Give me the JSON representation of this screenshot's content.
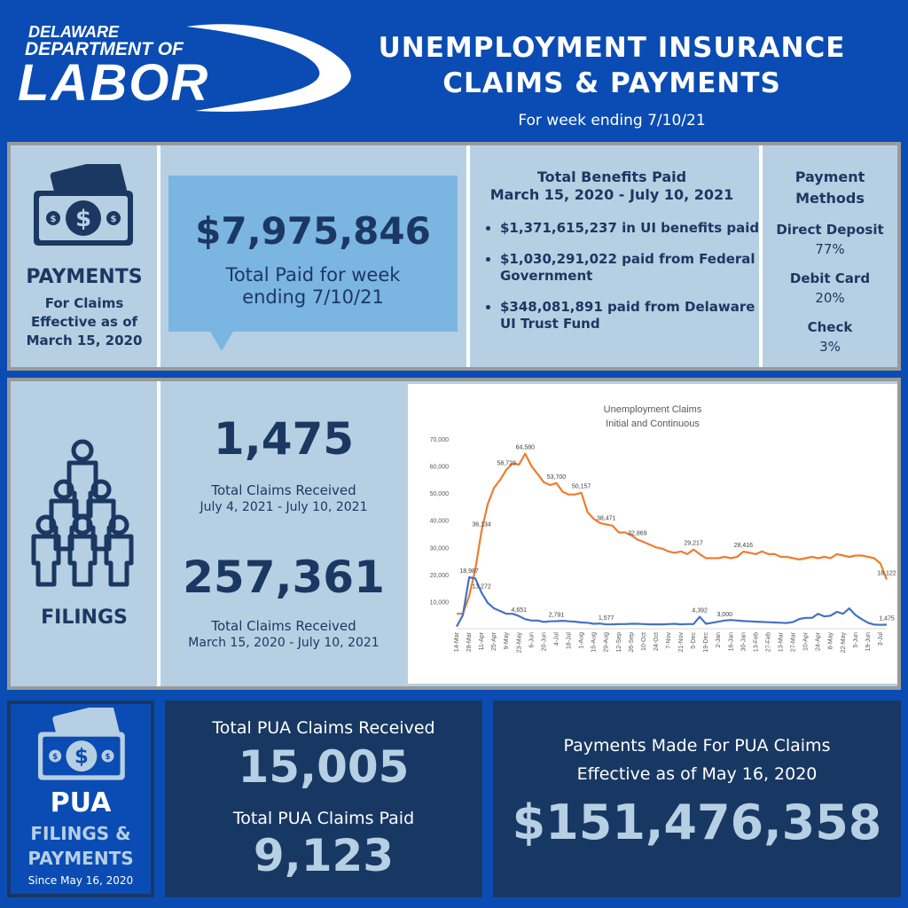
{
  "header": {
    "logo_line1": "DELAWARE",
    "logo_line2": "DEPARTMENT OF",
    "logo_line3": "LABOR",
    "title_line1": "UNEMPLOYMENT INSURANCE",
    "title_line2": "CLAIMS & PAYMENTS",
    "subtitle": "For week ending 7/10/21"
  },
  "payments": {
    "label": "PAYMENTS",
    "note": "For Claims Effective as of March 15, 2020",
    "icon": "money-icon",
    "total_week_value": "$7,975,846",
    "total_week_label": "Total Paid for week ending 7/10/21",
    "benefits_title_line1": "Total Benefits Paid",
    "benefits_title_line2": "March 15, 2020 - July 10, 2021",
    "benefits": [
      "$1,371,615,237 in UI benefits paid",
      "$1,030,291,022 paid from Federal Government",
      "$348,081,891 paid from Delaware UI Trust Fund"
    ],
    "methods_title": "Payment Methods",
    "methods": [
      {
        "name": "Direct Deposit",
        "pct": "77%"
      },
      {
        "name": "Debit Card",
        "pct": "20%"
      },
      {
        "name": "Check",
        "pct": "3%"
      }
    ]
  },
  "filings": {
    "label": "FILINGS",
    "icon": "people-pyramid-icon",
    "week_value": "1,475",
    "week_label_line1": "Total Claims Received",
    "week_label_line2": "July 4, 2021 - July 10, 2021",
    "total_value": "257,361",
    "total_label_line1": "Total Claims Received",
    "total_label_line2": "March 15, 2020 - July 10, 2021"
  },
  "chart_data": {
    "type": "line",
    "title": "Unemployment Claims",
    "subtitle": "Initial and Continuous",
    "ylim": [
      0,
      70000
    ],
    "yticks": [
      "",
      "10,000",
      "20,000",
      "30,000",
      "40,000",
      "50,000",
      "60,000",
      "70,000"
    ],
    "x": [
      "14-Mar",
      "21-Mar",
      "28-Mar",
      "4-Apr",
      "11-Apr",
      "18-Apr",
      "25-Apr",
      "2-May",
      "9-May",
      "16-May",
      "23-May",
      "30-May",
      "6-Jun",
      "13-Jun",
      "20-Jun",
      "27-Jun",
      "4-Jul",
      "11-Jul",
      "18-Jul",
      "25-Jul",
      "1-Aug",
      "8-Aug",
      "15-Aug",
      "22-Aug",
      "29-Aug",
      "5-Sep",
      "12-Sep",
      "19-Sep",
      "26-Sep",
      "3-Oct",
      "10-Oct",
      "17-Oct",
      "24-Oct",
      "31-Oct",
      "7-Nov",
      "14-Nov",
      "21-Nov",
      "28-Nov",
      "5-Dec",
      "12-Dec",
      "19-Dec",
      "26-Dec",
      "2-Jan",
      "9-Jan",
      "16-Jan",
      "23-Jan",
      "30-Jan",
      "6-Feb",
      "13-Feb",
      "20-Feb",
      "27-Feb",
      "6-Mar",
      "13-Mar",
      "20-Mar",
      "27-Mar",
      "3-Apr",
      "10-Apr",
      "17-Apr",
      "24-Apr",
      "1-May",
      "8-May",
      "15-May",
      "22-May",
      "29-May",
      "5-Jun",
      "12-Jun",
      "19-Jun",
      "26-Jun",
      "3-Jul",
      "10-Jul"
    ],
    "x_tick_labels": [
      "14-Mar",
      "28-Mar",
      "11-Apr",
      "25-Apr",
      "9-May",
      "23-May",
      "6-Jun",
      "20-Jun",
      "4-Jul",
      "18-Jul",
      "1-Aug",
      "15-Aug",
      "29-Aug",
      "12-Sep",
      "26-Sep",
      "10-Oct",
      "24-Oct",
      "7-Nov",
      "21-Nov",
      "5-Dec",
      "19-Dec",
      "2-Jan",
      "16-Jan",
      "30-Jan",
      "13-Feb",
      "27-Feb",
      "13-Mar",
      "27-Mar",
      "10-Apr",
      "24-Apr",
      "8-May",
      "22-May",
      "5-Jun",
      "19-Jun",
      "3-Jul"
    ],
    "series": [
      {
        "color": "#ed7d31",
        "values": [
          5500,
          5500,
          12000,
          22000,
          36134,
          46000,
          52000,
          55000,
          58723,
          61000,
          60500,
          64580,
          60000,
          57000,
          54000,
          53000,
          53700,
          50500,
          49500,
          49500,
          50157,
          43000,
          40500,
          39000,
          38471,
          38000,
          35500,
          35500,
          34500,
          32869,
          32000,
          31000,
          30000,
          29500,
          28500,
          28000,
          28500,
          27500,
          29217,
          27500,
          26000,
          26000,
          26000,
          26500,
          26000,
          26500,
          28416,
          28000,
          27500,
          28500,
          27500,
          27500,
          26500,
          26500,
          26000,
          25500,
          26000,
          26500,
          26000,
          26500,
          26000,
          27500,
          27000,
          26500,
          27000,
          27000,
          26500,
          26000,
          24000,
          18122
        ]
      },
      {
        "color": "#4472c4",
        "values": [
          800,
          5000,
          18987,
          18500,
          13272,
          9500,
          7500,
          6500,
          5500,
          5500,
          4651,
          3500,
          3000,
          3000,
          2500,
          2700,
          2791,
          2900,
          2700,
          2600,
          2300,
          2200,
          1800,
          1900,
          1577,
          1600,
          1700,
          1700,
          1800,
          1800,
          1700,
          1600,
          1600,
          1600,
          1700,
          1800,
          1600,
          1700,
          1700,
          4392,
          1800,
          2200,
          2600,
          3000,
          3200,
          3000,
          2800,
          2700,
          2600,
          2500,
          2400,
          2300,
          2200,
          2100,
          2500,
          3600,
          4000,
          4000,
          5500,
          4500,
          4800,
          6200,
          5500,
          7500,
          5000,
          3500,
          2200,
          1500,
          1400,
          1475
        ]
      }
    ],
    "labels": [
      {
        "series": 1,
        "index": 2,
        "text": "18,987"
      },
      {
        "series": 1,
        "index": 4,
        "text": "13,272"
      },
      {
        "series": 0,
        "index": 4,
        "text": "36,134"
      },
      {
        "series": 0,
        "index": 8,
        "text": "58,723"
      },
      {
        "series": 0,
        "index": 11,
        "text": "64,580"
      },
      {
        "series": 0,
        "index": 16,
        "text": "53,700"
      },
      {
        "series": 0,
        "index": 20,
        "text": "50,157"
      },
      {
        "series": 0,
        "index": 24,
        "text": "38,471"
      },
      {
        "series": 0,
        "index": 29,
        "text": "32,869"
      },
      {
        "series": 0,
        "index": 38,
        "text": "29,217"
      },
      {
        "series": 0,
        "index": 46,
        "text": "28,416"
      },
      {
        "series": 0,
        "index": 69,
        "text": "18,122"
      },
      {
        "series": 1,
        "index": 10,
        "text": "4,651"
      },
      {
        "series": 1,
        "index": 16,
        "text": "2,791"
      },
      {
        "series": 1,
        "index": 24,
        "text": "1,577"
      },
      {
        "series": 1,
        "index": 39,
        "text": "4,392"
      },
      {
        "series": 1,
        "index": 43,
        "text": "3,000"
      },
      {
        "series": 1,
        "index": 69,
        "text": "1,475"
      }
    ],
    "grid": false,
    "legend": "none"
  },
  "pua": {
    "label_line1": "PUA",
    "label_line2": "FILINGS &",
    "label_line3": "PAYMENTS",
    "since": "Since May 16, 2020",
    "icon": "money-icon",
    "received_label": "Total PUA Claims Received",
    "received_value": "15,005",
    "paid_label": "Total PUA Claims Paid",
    "paid_value": "9,123",
    "payments_label_line1": "Payments Made For PUA Claims",
    "payments_label_line2": "Effective as of May 16, 2020",
    "payments_value": "$151,476,358"
  },
  "colors": {
    "background": "#0a4cb3",
    "panel": "#b7cfe3",
    "navy": "#1b3862",
    "callout": "#7bb5e2",
    "dark": "#183864"
  }
}
